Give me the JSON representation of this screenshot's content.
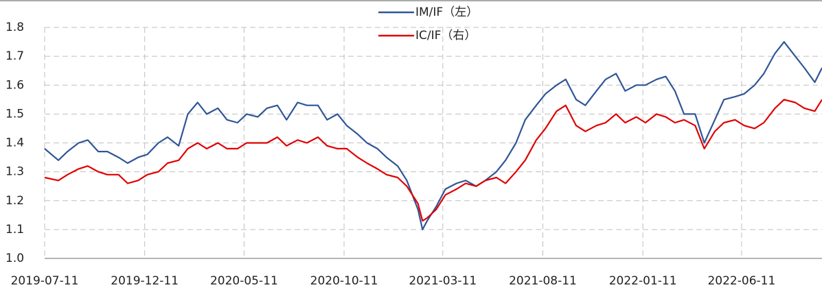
{
  "chart_data": {
    "type": "line",
    "x": [
      "2019-07-11",
      "2019-08-01",
      "2019-08-15",
      "2019-09-01",
      "2019-09-15",
      "2019-10-01",
      "2019-10-15",
      "2019-11-01",
      "2019-11-15",
      "2019-12-01",
      "2019-12-15",
      "2020-01-01",
      "2020-01-15",
      "2020-02-01",
      "2020-02-15",
      "2020-03-01",
      "2020-03-15",
      "2020-04-01",
      "2020-04-15",
      "2020-05-01",
      "2020-05-15",
      "2020-06-01",
      "2020-06-15",
      "2020-07-01",
      "2020-07-15",
      "2020-08-01",
      "2020-08-15",
      "2020-09-01",
      "2020-09-15",
      "2020-10-01",
      "2020-10-15",
      "2020-11-01",
      "2020-11-15",
      "2020-12-01",
      "2020-12-15",
      "2021-01-01",
      "2021-01-15",
      "2021-02-01",
      "2021-02-08",
      "2021-02-15",
      "2021-03-01",
      "2021-03-15",
      "2021-04-01",
      "2021-04-15",
      "2021-05-01",
      "2021-05-15",
      "2021-06-01",
      "2021-06-15",
      "2021-07-01",
      "2021-07-15",
      "2021-08-01",
      "2021-08-15",
      "2021-09-01",
      "2021-09-15",
      "2021-10-01",
      "2021-10-15",
      "2021-11-01",
      "2021-11-15",
      "2021-12-01",
      "2021-12-15",
      "2022-01-01",
      "2022-01-15",
      "2022-02-01",
      "2022-02-15",
      "2022-03-01",
      "2022-03-15",
      "2022-04-01",
      "2022-04-15",
      "2022-05-01",
      "2022-05-15",
      "2022-06-01",
      "2022-06-15",
      "2022-07-01",
      "2022-07-15",
      "2022-08-01",
      "2022-08-15",
      "2022-09-01",
      "2022-09-15",
      "2022-10-01",
      "2022-10-12"
    ],
    "series": [
      {
        "name": "IM/IF（左）",
        "color": "#2f5597",
        "values": [
          1.38,
          1.34,
          1.37,
          1.4,
          1.41,
          1.37,
          1.37,
          1.35,
          1.33,
          1.35,
          1.36,
          1.4,
          1.42,
          1.39,
          1.5,
          1.54,
          1.5,
          1.52,
          1.48,
          1.47,
          1.5,
          1.49,
          1.52,
          1.53,
          1.48,
          1.54,
          1.53,
          1.53,
          1.48,
          1.5,
          1.46,
          1.43,
          1.4,
          1.38,
          1.35,
          1.32,
          1.27,
          1.17,
          1.1,
          1.13,
          1.18,
          1.24,
          1.26,
          1.27,
          1.25,
          1.27,
          1.3,
          1.34,
          1.4,
          1.48,
          1.53,
          1.57,
          1.6,
          1.62,
          1.55,
          1.53,
          1.58,
          1.62,
          1.64,
          1.58,
          1.6,
          1.6,
          1.62,
          1.63,
          1.58,
          1.5,
          1.5,
          1.4,
          1.48,
          1.55,
          1.56,
          1.57,
          1.6,
          1.64,
          1.71,
          1.75,
          1.7,
          1.66,
          1.61,
          1.66
        ]
      },
      {
        "name": "IC/IF（右）",
        "color": "#e00000",
        "values": [
          1.28,
          1.27,
          1.29,
          1.31,
          1.32,
          1.3,
          1.29,
          1.29,
          1.26,
          1.27,
          1.29,
          1.3,
          1.33,
          1.34,
          1.38,
          1.4,
          1.38,
          1.4,
          1.38,
          1.38,
          1.4,
          1.4,
          1.4,
          1.42,
          1.39,
          1.41,
          1.4,
          1.42,
          1.39,
          1.38,
          1.38,
          1.35,
          1.33,
          1.31,
          1.29,
          1.28,
          1.25,
          1.19,
          1.13,
          1.14,
          1.17,
          1.22,
          1.24,
          1.26,
          1.25,
          1.27,
          1.28,
          1.26,
          1.3,
          1.34,
          1.41,
          1.45,
          1.51,
          1.53,
          1.46,
          1.44,
          1.46,
          1.47,
          1.5,
          1.47,
          1.49,
          1.47,
          1.5,
          1.49,
          1.47,
          1.48,
          1.46,
          1.38,
          1.44,
          1.47,
          1.48,
          1.46,
          1.45,
          1.47,
          1.52,
          1.55,
          1.54,
          1.52,
          1.51,
          1.55
        ]
      }
    ],
    "xlim": [
      "2019-07-11",
      "2022-10-12"
    ],
    "xticks": [
      "2019-07-11",
      "2019-12-11",
      "2020-05-11",
      "2020-10-11",
      "2021-03-11",
      "2021-08-11",
      "2022-01-11",
      "2022-06-11"
    ],
    "ylim": [
      1,
      1.8
    ],
    "yticks": [
      {
        "value": 1,
        "label": "1.0"
      },
      1.1,
      1.2,
      1.3,
      1.4,
      1.5,
      1.6,
      1.7,
      1.8
    ],
    "grid": true
  }
}
